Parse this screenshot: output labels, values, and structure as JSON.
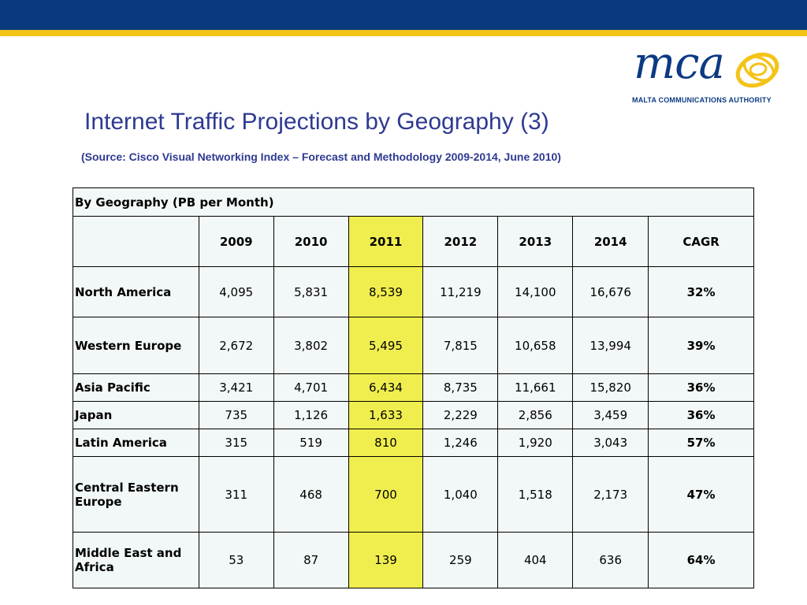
{
  "header": {
    "bar_color": "#0a3a7d",
    "stripe_color": "#f3c318"
  },
  "logo": {
    "wordmark": "mca",
    "org_name": "MALTA COMMUNICATIONS AUTHORITY",
    "icon": "swirl-ellipse-icon"
  },
  "slide": {
    "title": "Internet Traffic Projections by Geography (3)",
    "subtitle": "(Source: Cisco Visual Networking Index – Forecast and Methodology 2009-2014, June 2010)"
  },
  "table": {
    "caption": "By Geography (PB per Month)",
    "columns": [
      "2009",
      "2010",
      "2011",
      "2012",
      "2013",
      "2014",
      "CAGR"
    ],
    "highlight_color": "#f0ee4e",
    "rows": [
      {
        "region": "North America",
        "values": [
          "4,095",
          "5,831",
          "8,539",
          "11,219",
          "14,100",
          "16,676"
        ],
        "cagr": "32%"
      },
      {
        "region": "Western Europe",
        "values": [
          "2,672",
          "3,802",
          "5,495",
          "7,815",
          "10,658",
          "13,994"
        ],
        "cagr": "39%"
      },
      {
        "region": "Asia Pacific",
        "values": [
          "3,421",
          "4,701",
          "6,434",
          "8,735",
          "11,661",
          "15,820"
        ],
        "cagr": "36%"
      },
      {
        "region": "Japan",
        "values": [
          "735",
          "1,126",
          "1,633",
          "2,229",
          "2,856",
          "3,459"
        ],
        "cagr": "36%"
      },
      {
        "region": "Latin America",
        "values": [
          "315",
          "519",
          "810",
          "1,246",
          "1,920",
          "3,043"
        ],
        "cagr": "57%"
      },
      {
        "region": "Central Eastern Europe",
        "values": [
          "311",
          "468",
          "700",
          "1,040",
          "1,518",
          "2,173"
        ],
        "cagr": "47%"
      },
      {
        "region": "Middle East and Africa",
        "values": [
          "53",
          "87",
          "139",
          "259",
          "404",
          "636"
        ],
        "cagr": "64%"
      }
    ]
  }
}
